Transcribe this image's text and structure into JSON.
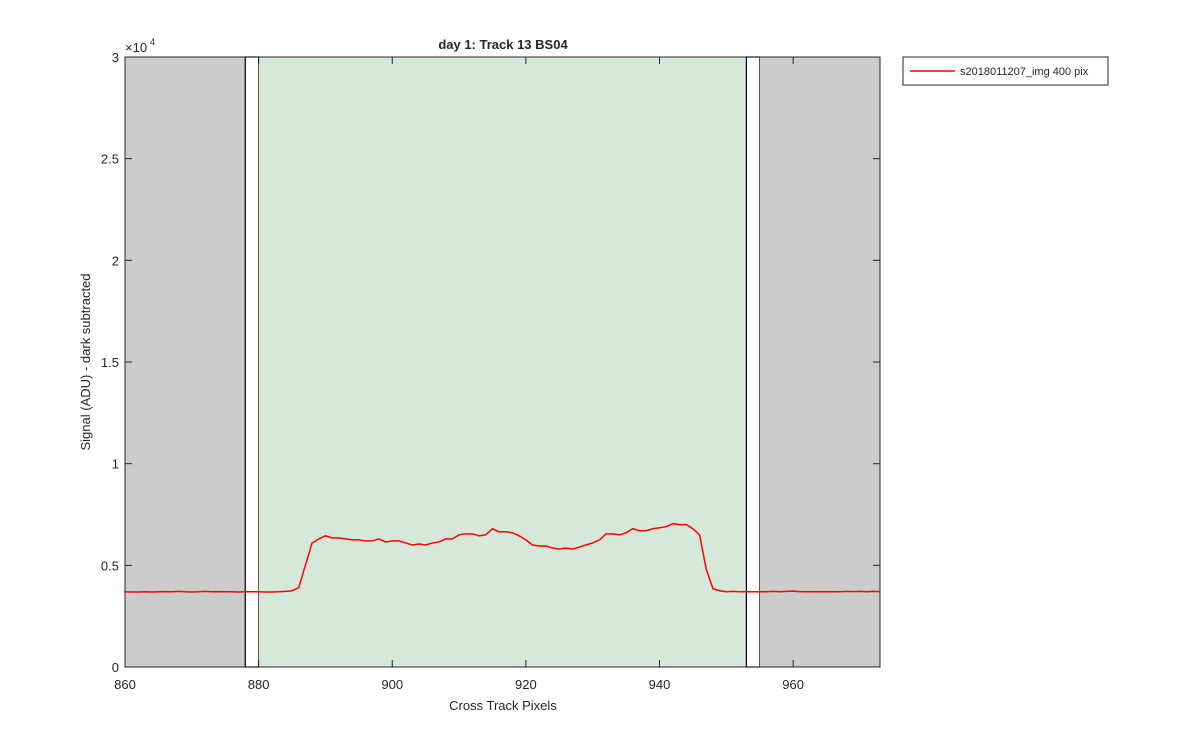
{
  "chart_data": {
    "type": "line",
    "title": "day 1: Track 13  BS04",
    "x_label": "Cross Track Pixels",
    "y_label": "Signal (ADU) - dark subtracted",
    "y_multiplier": {
      "base": "×10",
      "exponent": "4"
    },
    "xlim": [
      860,
      973
    ],
    "ylim": [
      0,
      30000
    ],
    "xticks": [
      860,
      880,
      900,
      920,
      940,
      960
    ],
    "yticks": [
      0,
      {
        "value": 5000,
        "label": "0.5"
      },
      {
        "value": 10000,
        "label": "1"
      },
      {
        "value": 15000,
        "label": "1.5"
      },
      {
        "value": 20000,
        "label": "2"
      },
      {
        "value": 25000,
        "label": "2.5"
      },
      {
        "value": 30000,
        "label": "3"
      }
    ],
    "regions": [
      {
        "x": [
          860,
          878
        ],
        "color": "#cccccc"
      },
      {
        "x": [
          878,
          880
        ],
        "color": "#ffffff",
        "edgecolor": "#000000"
      },
      {
        "x": [
          880,
          953
        ],
        "color": "#d5e8da"
      },
      {
        "x": [
          953,
          955
        ],
        "color": "#ffffff",
        "edgecolor": "#000000"
      },
      {
        "x": [
          955,
          973
        ],
        "color": "#cccccc"
      }
    ],
    "legend": "top-right-outside",
    "x": [
      860,
      861,
      862,
      863,
      864,
      865,
      866,
      867,
      868,
      869,
      870,
      871,
      872,
      873,
      874,
      875,
      876,
      877,
      878,
      879,
      880,
      881,
      882,
      883,
      884,
      885,
      886,
      887,
      888,
      889,
      890,
      891,
      892,
      893,
      894,
      895,
      896,
      897,
      898,
      899,
      900,
      901,
      902,
      903,
      904,
      905,
      906,
      907,
      908,
      909,
      910,
      911,
      912,
      913,
      914,
      915,
      916,
      917,
      918,
      919,
      920,
      921,
      922,
      923,
      924,
      925,
      926,
      927,
      928,
      929,
      930,
      931,
      932,
      933,
      934,
      935,
      936,
      937,
      938,
      939,
      940,
      941,
      942,
      943,
      944,
      945,
      946,
      947,
      948,
      949,
      950,
      951,
      952,
      953,
      954,
      955,
      956,
      957,
      958,
      959,
      960,
      961,
      962,
      963,
      964,
      965,
      966,
      967,
      968,
      969,
      970,
      971,
      972,
      973
    ],
    "series": [
      {
        "name": "s2018011207_img 400 pix",
        "color": "#ff0000",
        "values": [
          3700,
          3690,
          3690,
          3700,
          3690,
          3700,
          3710,
          3700,
          3720,
          3700,
          3690,
          3700,
          3720,
          3700,
          3710,
          3700,
          3700,
          3690,
          3700,
          3700,
          3700,
          3690,
          3690,
          3700,
          3720,
          3750,
          3900,
          5000,
          6100,
          6300,
          6450,
          6350,
          6350,
          6300,
          6250,
          6250,
          6200,
          6200,
          6300,
          6150,
          6200,
          6200,
          6100,
          6000,
          6050,
          6000,
          6100,
          6150,
          6300,
          6300,
          6500,
          6550,
          6550,
          6450,
          6500,
          6800,
          6650,
          6650,
          6600,
          6450,
          6250,
          6000,
          5950,
          5950,
          5850,
          5800,
          5850,
          5800,
          5900,
          6000,
          6100,
          6250,
          6550,
          6550,
          6500,
          6600,
          6800,
          6700,
          6700,
          6800,
          6850,
          6900,
          7050,
          7000,
          7000,
          6800,
          6500,
          4800,
          3850,
          3750,
          3700,
          3720,
          3700,
          3710,
          3700,
          3700,
          3700,
          3720,
          3700,
          3720,
          3730,
          3710,
          3700,
          3700,
          3700,
          3710,
          3700,
          3700,
          3720,
          3710,
          3720,
          3700,
          3720,
          3710
        ]
      }
    ]
  }
}
